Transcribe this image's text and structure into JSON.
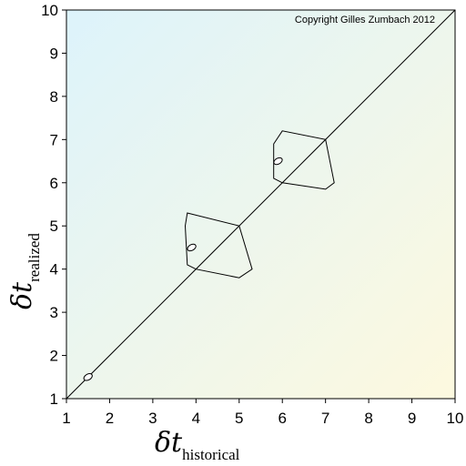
{
  "chart_data": {
    "type": "scatter",
    "title": "",
    "annotation": "Copyright Gilles Zumbach 2012",
    "xlabel": {
      "symbol": "δt",
      "subscript": "historical"
    },
    "ylabel": {
      "symbol": "δt",
      "subscript": "realized"
    },
    "xlim": [
      1,
      10
    ],
    "ylim": [
      1,
      10
    ],
    "xticks": [
      1,
      2,
      3,
      4,
      5,
      6,
      7,
      8,
      9,
      10
    ],
    "yticks": [
      1,
      2,
      3,
      4,
      5,
      6,
      7,
      8,
      9,
      10
    ],
    "diagonal": {
      "from": [
        1,
        1
      ],
      "to": [
        10,
        10
      ]
    },
    "points": [
      {
        "x": 1.5,
        "y": 1.5
      },
      {
        "x": 3.9,
        "y": 4.5
      },
      {
        "x": 5.9,
        "y": 6.5
      }
    ],
    "shapes": [
      {
        "name": "contour-4-5",
        "vertices": [
          [
            4.0,
            4.0
          ],
          [
            3.8,
            4.1
          ],
          [
            3.75,
            5.0
          ],
          [
            3.8,
            5.3
          ],
          [
            5.0,
            5.0
          ],
          [
            5.3,
            4.0
          ],
          [
            5.0,
            3.8
          ]
        ]
      },
      {
        "name": "contour-6-7",
        "vertices": [
          [
            6.0,
            6.0
          ],
          [
            5.8,
            6.1
          ],
          [
            5.8,
            6.9
          ],
          [
            6.0,
            7.2
          ],
          [
            7.0,
            7.0
          ],
          [
            7.2,
            6.0
          ],
          [
            7.0,
            5.85
          ]
        ]
      }
    ],
    "grid": false,
    "background": {
      "top_left": "#ddf3fb",
      "bottom_right": "#fdf9df"
    }
  }
}
